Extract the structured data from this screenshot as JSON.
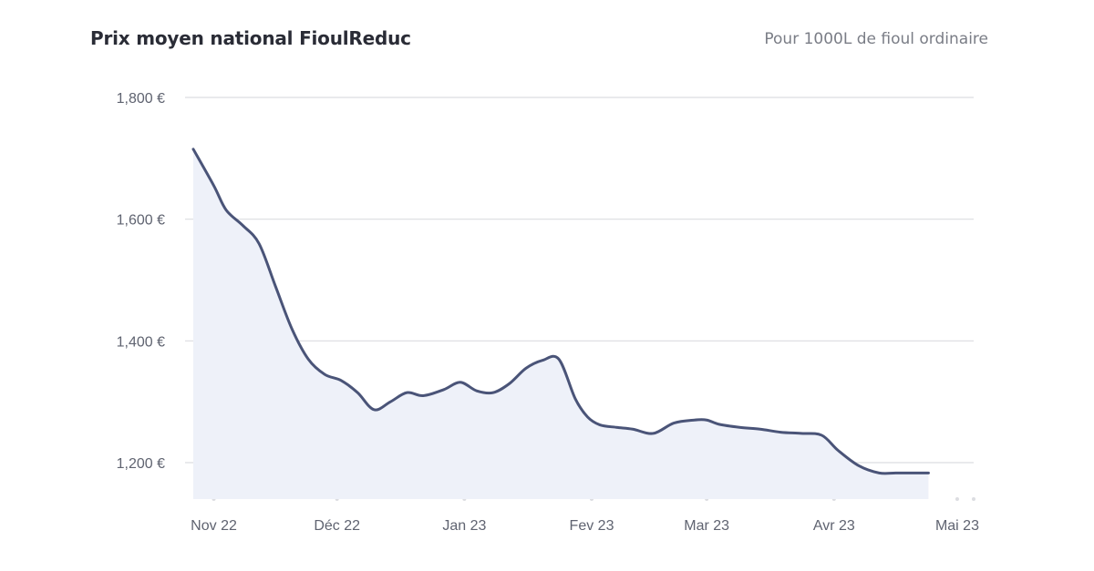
{
  "header": {
    "title": "Prix moyen national FioulReduc",
    "subtitle": "Pour 1000L de fioul ordinaire"
  },
  "colors": {
    "line": "#4a5478",
    "area": "#eef1f9",
    "grid": "#dcdde1",
    "tick_text": "#5f6370"
  },
  "chart_data": {
    "type": "area",
    "title": "Prix moyen national FioulReduc",
    "subtitle": "Pour 1000L de fioul ordinaire",
    "xlabel": "",
    "ylabel": "",
    "ylim": [
      1140,
      1800
    ],
    "yticks": [
      1200,
      1400,
      1600,
      1800
    ],
    "ytick_labels": [
      "1,200 €",
      "1,400 €",
      "1,600 €",
      "1,800 €"
    ],
    "xlim": [
      "2022-10-25",
      "2023-05-05"
    ],
    "xticks": [
      "2022-11-01",
      "2022-12-01",
      "2023-01-01",
      "2023-02-01",
      "2023-03-01",
      "2023-04-01",
      "2023-05-01"
    ],
    "xtick_labels": [
      "Nov 22",
      "Déc 22",
      "Jan 23",
      "Fev 23",
      "Mar 23",
      "Avr 23",
      "Mai 23"
    ],
    "grid": true,
    "legend": "none",
    "series": [
      {
        "x": [
          "2022-10-27",
          "2022-11-01",
          "2022-11-04",
          "2022-11-08",
          "2022-11-12",
          "2022-11-16",
          "2022-11-20",
          "2022-11-24",
          "2022-11-28",
          "2022-12-02",
          "2022-12-06",
          "2022-12-10",
          "2022-12-14",
          "2022-12-18",
          "2022-12-22",
          "2022-12-27",
          "2022-12-31",
          "2023-01-04",
          "2023-01-08",
          "2023-01-12",
          "2023-01-16",
          "2023-01-20",
          "2023-01-24",
          "2023-01-28",
          "2023-01-31",
          "2023-02-03",
          "2023-02-07",
          "2023-02-11",
          "2023-02-16",
          "2023-02-21",
          "2023-02-26",
          "2023-03-01",
          "2023-03-04",
          "2023-03-09",
          "2023-03-14",
          "2023-03-19",
          "2023-03-24",
          "2023-03-29",
          "2023-04-02",
          "2023-04-07",
          "2023-04-12",
          "2023-04-16",
          "2023-04-20",
          "2023-04-24"
        ],
        "values": [
          1715,
          1655,
          1615,
          1590,
          1560,
          1490,
          1420,
          1370,
          1345,
          1335,
          1315,
          1287,
          1300,
          1315,
          1310,
          1320,
          1332,
          1318,
          1315,
          1330,
          1355,
          1368,
          1370,
          1305,
          1275,
          1262,
          1258,
          1255,
          1248,
          1265,
          1270,
          1270,
          1263,
          1258,
          1255,
          1250,
          1248,
          1245,
          1220,
          1195,
          1183,
          1183,
          1183,
          1183
        ]
      }
    ]
  }
}
